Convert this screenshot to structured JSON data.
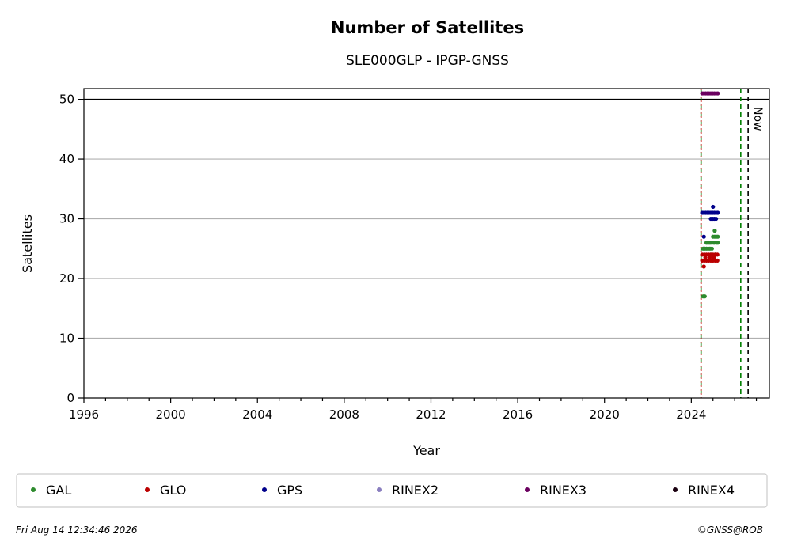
{
  "chart_data": {
    "type": "scatter",
    "title": "Number of Satellites",
    "subtitle": "SLE000GLP - IPGP-GNSS",
    "xlabel": "Year",
    "ylabel": "Satellites",
    "xlim": [
      1996,
      2027.6
    ],
    "ylim": [
      0,
      51.8
    ],
    "xticks": [
      1996,
      2000,
      2004,
      2008,
      2012,
      2016,
      2020,
      2024
    ],
    "xtick_labels": [
      "1996",
      "2000",
      "2004",
      "2008",
      "2012",
      "2016",
      "2020",
      "2024"
    ],
    "yticks": [
      0,
      10,
      20,
      30,
      40,
      50
    ],
    "ytick_labels": [
      "0",
      "10",
      "20",
      "30",
      "40",
      "50"
    ],
    "grid": "horizontal",
    "reference_line_y": 50,
    "vlines": [
      {
        "x": 2024.45,
        "color": "#008000",
        "style": "dashed"
      },
      {
        "x": 2024.45,
        "color": "#cc0000",
        "style": "dotted"
      },
      {
        "x": 2026.28,
        "color": "#008000",
        "style": "dashed"
      },
      {
        "x": 2026.62,
        "color": "#000000",
        "style": "dashed",
        "label": "Now"
      }
    ],
    "legend_position": "bottom",
    "series": [
      {
        "name": "GAL",
        "color": "#2e8b2e",
        "points": [
          [
            2024.55,
            17
          ],
          [
            2024.62,
            17
          ],
          [
            2024.55,
            25
          ],
          [
            2024.62,
            25
          ],
          [
            2024.7,
            25
          ],
          [
            2024.78,
            25
          ],
          [
            2024.86,
            25
          ],
          [
            2024.7,
            26
          ],
          [
            2024.78,
            26
          ],
          [
            2024.86,
            26
          ],
          [
            2024.95,
            26
          ],
          [
            2025.05,
            26
          ],
          [
            2025.15,
            26
          ],
          [
            2025.22,
            26
          ],
          [
            2024.95,
            25
          ],
          [
            2025.0,
            27
          ],
          [
            2025.08,
            27
          ],
          [
            2025.15,
            27
          ],
          [
            2025.22,
            27
          ],
          [
            2025.08,
            28
          ],
          [
            2024.6,
            24
          ],
          [
            2024.9,
            24
          ],
          [
            2025.1,
            24
          ]
        ]
      },
      {
        "name": "GLO",
        "color": "#bb0000",
        "points": [
          [
            2024.58,
            22
          ],
          [
            2024.5,
            23
          ],
          [
            2024.6,
            23
          ],
          [
            2024.7,
            23
          ],
          [
            2024.8,
            23
          ],
          [
            2024.9,
            23
          ],
          [
            2025.0,
            23
          ],
          [
            2025.1,
            23
          ],
          [
            2025.2,
            23
          ],
          [
            2024.5,
            24
          ],
          [
            2024.6,
            24
          ],
          [
            2024.7,
            24
          ],
          [
            2024.8,
            24
          ],
          [
            2024.9,
            24
          ],
          [
            2025.0,
            24
          ],
          [
            2025.1,
            24
          ],
          [
            2025.2,
            24
          ],
          [
            2024.65,
            23.5
          ],
          [
            2024.85,
            23.5
          ],
          [
            2025.05,
            23.5
          ]
        ]
      },
      {
        "name": "GPS",
        "color": "#00008b",
        "points": [
          [
            2024.58,
            27
          ],
          [
            2024.5,
            31
          ],
          [
            2024.58,
            31
          ],
          [
            2024.66,
            31
          ],
          [
            2024.74,
            31
          ],
          [
            2024.82,
            31
          ],
          [
            2024.9,
            31
          ],
          [
            2024.98,
            31
          ],
          [
            2025.06,
            31
          ],
          [
            2025.14,
            31
          ],
          [
            2025.22,
            31
          ],
          [
            2024.9,
            30
          ],
          [
            2024.98,
            30
          ],
          [
            2025.06,
            30
          ],
          [
            2025.14,
            30
          ],
          [
            2025.0,
            32
          ]
        ]
      },
      {
        "name": "RINEX2",
        "color": "#8a7ebf",
        "points": []
      },
      {
        "name": "RINEX3",
        "color": "#6a005f",
        "points": [
          [
            2024.5,
            51
          ],
          [
            2024.58,
            51
          ],
          [
            2024.66,
            51
          ],
          [
            2024.74,
            51
          ],
          [
            2024.82,
            51
          ],
          [
            2024.9,
            51
          ],
          [
            2024.98,
            51
          ],
          [
            2025.06,
            51
          ],
          [
            2025.14,
            51
          ],
          [
            2025.22,
            51
          ]
        ]
      },
      {
        "name": "RINEX4",
        "color": "#1a0010",
        "points": []
      }
    ]
  },
  "footer": {
    "timestamp": "Fri Aug 14 12:34:46 2026",
    "credit": "©GNSS@ROB"
  }
}
